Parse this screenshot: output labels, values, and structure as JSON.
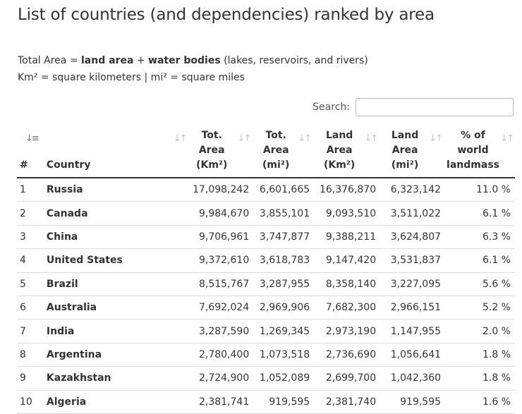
{
  "title": "List of countries (and dependencies) ranked by area",
  "intro": {
    "line1_prefix": "Total Area = ",
    "line1_bold1": "land area",
    "line1_plus": " + ",
    "line1_bold2": "water bodies",
    "line1_suffix": " (lakes, reservoirs, and rivers)",
    "line2": "Km² = square kilometers | mi² = square miles"
  },
  "search": {
    "label": "Search:",
    "value": "",
    "placeholder": ""
  },
  "table": {
    "headers": {
      "rank": "#",
      "country": "Country",
      "total_km_1": "Tot.",
      "total_km_2": "Area",
      "total_km_3": "(Km²)",
      "total_mi_1": "Tot.",
      "total_mi_2": "Area",
      "total_mi_3": "(mi²)",
      "land_km_1": "Land",
      "land_km_2": "Area",
      "land_km_3": "(Km²)",
      "land_mi_1": "Land",
      "land_mi_2": "Area",
      "land_mi_3": "(mi²)",
      "pct_1": "% of",
      "pct_2": "world",
      "pct_3": "landmass"
    },
    "sort_icons": {
      "active": "sort-numeric-asc-icon",
      "inactive": "sort-both-icon"
    },
    "rows": [
      {
        "rank": "1",
        "country": "Russia",
        "total_km": "17,098,242",
        "total_mi": "6,601,665",
        "land_km": "16,376,870",
        "land_mi": "6,323,142",
        "pct": "11.0 %"
      },
      {
        "rank": "2",
        "country": "Canada",
        "total_km": "9,984,670",
        "total_mi": "3,855,101",
        "land_km": "9,093,510",
        "land_mi": "3,511,022",
        "pct": "6.1 %"
      },
      {
        "rank": "3",
        "country": "China",
        "total_km": "9,706,961",
        "total_mi": "3,747,877",
        "land_km": "9,388,211",
        "land_mi": "3,624,807",
        "pct": "6.3 %"
      },
      {
        "rank": "4",
        "country": "United States",
        "total_km": "9,372,610",
        "total_mi": "3,618,783",
        "land_km": "9,147,420",
        "land_mi": "3,531,837",
        "pct": "6.1 %"
      },
      {
        "rank": "5",
        "country": "Brazil",
        "total_km": "8,515,767",
        "total_mi": "3,287,955",
        "land_km": "8,358,140",
        "land_mi": "3,227,095",
        "pct": "5.6 %"
      },
      {
        "rank": "6",
        "country": "Australia",
        "total_km": "7,692,024",
        "total_mi": "2,969,906",
        "land_km": "7,682,300",
        "land_mi": "2,966,151",
        "pct": "5.2 %"
      },
      {
        "rank": "7",
        "country": "India",
        "total_km": "3,287,590",
        "total_mi": "1,269,345",
        "land_km": "2,973,190",
        "land_mi": "1,147,955",
        "pct": "2.0 %"
      },
      {
        "rank": "8",
        "country": "Argentina",
        "total_km": "2,780,400",
        "total_mi": "1,073,518",
        "land_km": "2,736,690",
        "land_mi": "1,056,641",
        "pct": "1.8 %"
      },
      {
        "rank": "9",
        "country": "Kazakhstan",
        "total_km": "2,724,900",
        "total_mi": "1,052,089",
        "land_km": "2,699,700",
        "land_mi": "1,042,360",
        "pct": "1.8 %"
      },
      {
        "rank": "10",
        "country": "Algeria",
        "total_km": "2,381,741",
        "total_mi": "919,595",
        "land_km": "2,381,740",
        "land_mi": "919,595",
        "pct": "1.6 %"
      }
    ]
  }
}
